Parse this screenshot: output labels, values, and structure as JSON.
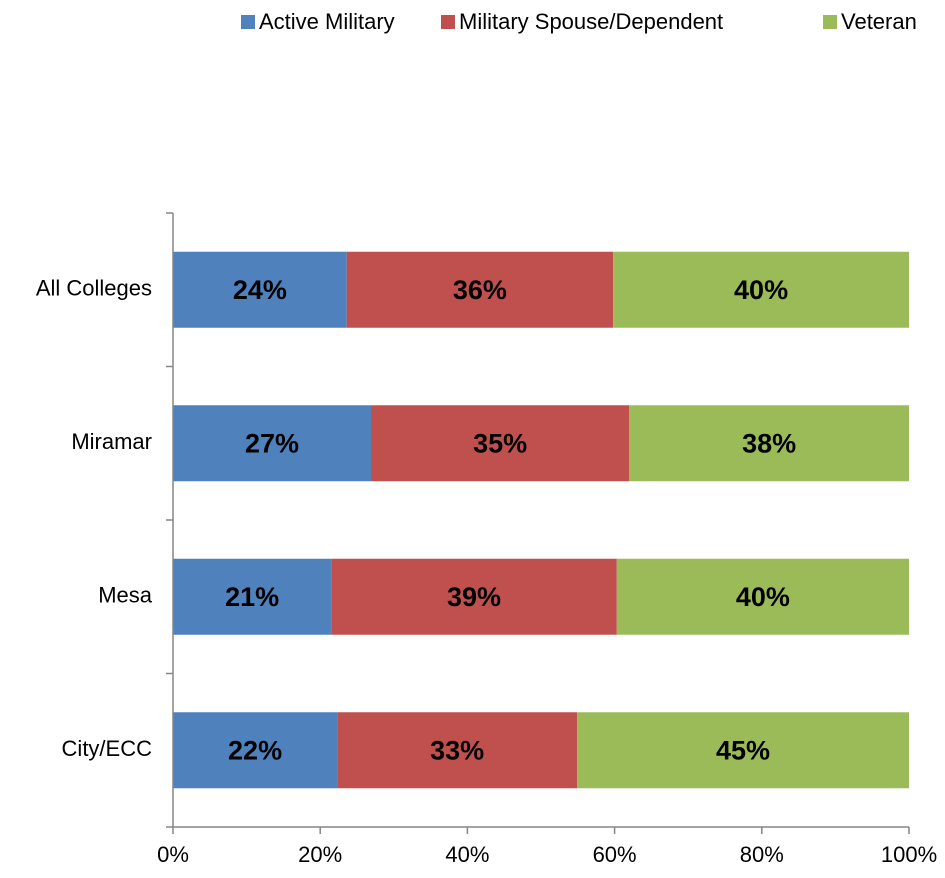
{
  "chart_data": {
    "type": "stacked_barh",
    "categories": [
      "All Colleges",
      "Miramar",
      "Mesa",
      "City/ECC"
    ],
    "series": [
      {
        "name": "Active Military",
        "color": "#4f81bd",
        "values": [
          23.6,
          26.9,
          21.5,
          22.3
        ],
        "value_labels": [
          "24%",
          "27%",
          "21%",
          "22%"
        ]
      },
      {
        "name": "Military Spouse/Dependent",
        "color": "#c0504d",
        "values": [
          36.2,
          35.1,
          38.8,
          32.6
        ],
        "value_labels": [
          "36%",
          "35%",
          "39%",
          "33%"
        ]
      },
      {
        "name": "Veteran",
        "color": "#9bbb59",
        "values": [
          40.2,
          38.0,
          39.7,
          45.1
        ],
        "value_labels": [
          "40%",
          "38%",
          "40%",
          "45%"
        ]
      }
    ],
    "xlim": [
      0,
      100
    ],
    "xticks": [
      {
        "value": 0,
        "label": "0%"
      },
      {
        "value": 20,
        "label": "20%"
      },
      {
        "value": 40,
        "label": "40%"
      },
      {
        "value": 60,
        "label": "60%"
      },
      {
        "value": 80,
        "label": "80%"
      },
      {
        "value": 100,
        "label": "100%"
      }
    ],
    "legend": "top"
  }
}
